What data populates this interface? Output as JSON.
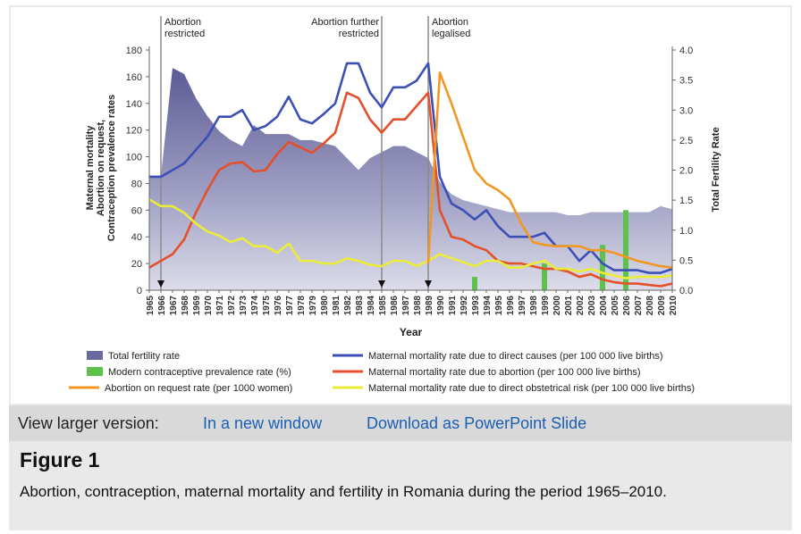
{
  "chart_data": {
    "type": "area+line+bar",
    "years": [
      1965,
      1966,
      1967,
      1968,
      1969,
      1970,
      1971,
      1972,
      1973,
      1974,
      1975,
      1976,
      1977,
      1978,
      1979,
      1980,
      1981,
      1982,
      1983,
      1984,
      1985,
      1986,
      1987,
      1988,
      1989,
      1990,
      1991,
      1992,
      1993,
      1994,
      1995,
      1996,
      1997,
      1998,
      1999,
      2000,
      2001,
      2002,
      2003,
      2004,
      2005,
      2006,
      2007,
      2008,
      2009,
      2010
    ],
    "xlabel": "Year",
    "ylabel_left": "Maternal mortality, Abortion on request, Contraception prevalence rates",
    "ylabel_right": "Total Fertility Rate",
    "ylim_left": [
      0,
      180
    ],
    "yticks_left": [
      "0",
      "20",
      "40",
      "60",
      "80",
      "100",
      "120",
      "140",
      "160",
      "180"
    ],
    "ylim_right": [
      0,
      4
    ],
    "yticks_right": [
      "0.0",
      "0.5",
      "1.0",
      "1.5",
      "2.0",
      "2.5",
      "3.0",
      "3.5",
      "4.0"
    ],
    "total_fertility_rate": [
      1.9,
      1.9,
      3.7,
      3.6,
      3.2,
      2.9,
      2.65,
      2.5,
      2.4,
      2.75,
      2.6,
      2.6,
      2.6,
      2.5,
      2.5,
      2.45,
      2.4,
      2.2,
      2.0,
      2.2,
      2.3,
      2.4,
      2.4,
      2.3,
      2.2,
      1.8,
      1.6,
      1.5,
      1.45,
      1.4,
      1.35,
      1.3,
      1.3,
      1.3,
      1.3,
      1.3,
      1.25,
      1.25,
      1.3,
      1.3,
      1.3,
      1.3,
      1.3,
      1.3,
      1.4,
      1.35
    ],
    "series": [
      {
        "name": "Maternal mortality rate due to direct causes (per 100 000 live births)",
        "color": "#3c4fb6",
        "values": [
          85,
          85,
          90,
          95,
          105,
          115,
          130,
          130,
          135,
          120,
          123,
          130,
          145,
          128,
          125,
          132,
          140,
          170,
          170,
          148,
          137,
          152,
          152,
          157,
          170,
          85,
          65,
          60,
          53,
          60,
          48,
          40,
          40,
          40,
          43,
          33,
          33,
          22,
          30,
          20,
          15,
          15,
          15,
          13,
          13,
          16
        ]
      },
      {
        "name": "Maternal mortality rate due to abortion (per 100 000 live births)",
        "color": "#e4502a",
        "values": [
          17,
          22,
          27,
          38,
          58,
          75,
          90,
          95,
          96,
          89,
          90,
          102,
          111,
          107,
          103,
          110,
          118,
          148,
          144,
          128,
          118,
          128,
          128,
          138,
          148,
          60,
          40,
          38,
          33,
          30,
          22,
          20,
          20,
          18,
          16,
          16,
          14,
          10,
          12,
          8,
          6,
          5,
          5,
          4,
          3,
          5
        ]
      },
      {
        "name": "Maternal mortality rate due to direct obstetrical risk (per 100 000 live births)",
        "color": "#eaec3a",
        "values": [
          68,
          63,
          63,
          58,
          50,
          44,
          41,
          36,
          39,
          33,
          33,
          28,
          35,
          22,
          22,
          20,
          20,
          24,
          22,
          19,
          18,
          22,
          22,
          18,
          22,
          27,
          24,
          21,
          18,
          22,
          22,
          17,
          17,
          20,
          22,
          16,
          16,
          14,
          16,
          13,
          11,
          9,
          10,
          10,
          10,
          11
        ]
      },
      {
        "name": "Abortion on request rate (per 1000 women)",
        "color": "#f29722",
        "years": [
          1989,
          1990,
          1991,
          1992,
          1993,
          1994,
          1995,
          1996,
          1997,
          1998,
          1999,
          2000,
          2001,
          2002,
          2003,
          2004,
          2005,
          2006,
          2007,
          2008,
          2009,
          2010
        ],
        "values": [
          20,
          163,
          140,
          115,
          90,
          80,
          75,
          68,
          50,
          36,
          34,
          33,
          33,
          33,
          30,
          30,
          28,
          25,
          22,
          20,
          18,
          17
        ]
      }
    ],
    "bars": {
      "name": "Modern contraceptive prevalence rate (%)",
      "color": "#5cc24c",
      "years": [
        1993,
        1999,
        2004,
        2006
      ],
      "values": [
        10,
        20,
        34,
        60
      ]
    },
    "annotations": [
      {
        "year": 1966,
        "label": [
          "Abortion",
          "restricted"
        ]
      },
      {
        "year": 1985,
        "label": [
          "Abortion further",
          "restricted"
        ]
      },
      {
        "year": 1989,
        "label": [
          "Abortion",
          "legalised"
        ]
      }
    ],
    "legend": [
      {
        "label": "Total fertility rate",
        "kind": "area",
        "color": "#6b6aa0"
      },
      {
        "label": "Modern contraceptive prevalence rate (%)",
        "kind": "bar",
        "color": "#5cc24c"
      },
      {
        "label": "Abortion on request rate (per 1000 women)",
        "kind": "line",
        "color": "#f29722"
      },
      {
        "label": "Maternal mortality rate due to direct causes (per 100 000 live births)",
        "kind": "line",
        "color": "#3c4fb6"
      },
      {
        "label": "Maternal mortality rate due to abortion (per 100 000 live births)",
        "kind": "line",
        "color": "#e4502a"
      },
      {
        "label": "Maternal mortality rate due to direct obstetrical risk (per 100 000 live births)",
        "kind": "line",
        "color": "#eaec3a"
      }
    ]
  },
  "view_bar": {
    "label": "View larger version:",
    "link_new_window": "In a new window",
    "link_powerpoint": "Download as PowerPoint Slide"
  },
  "figure": {
    "title": "Figure 1",
    "caption": "Abortion, contraception, maternal mortality and fertility in Romania during the period 1965–2010."
  }
}
